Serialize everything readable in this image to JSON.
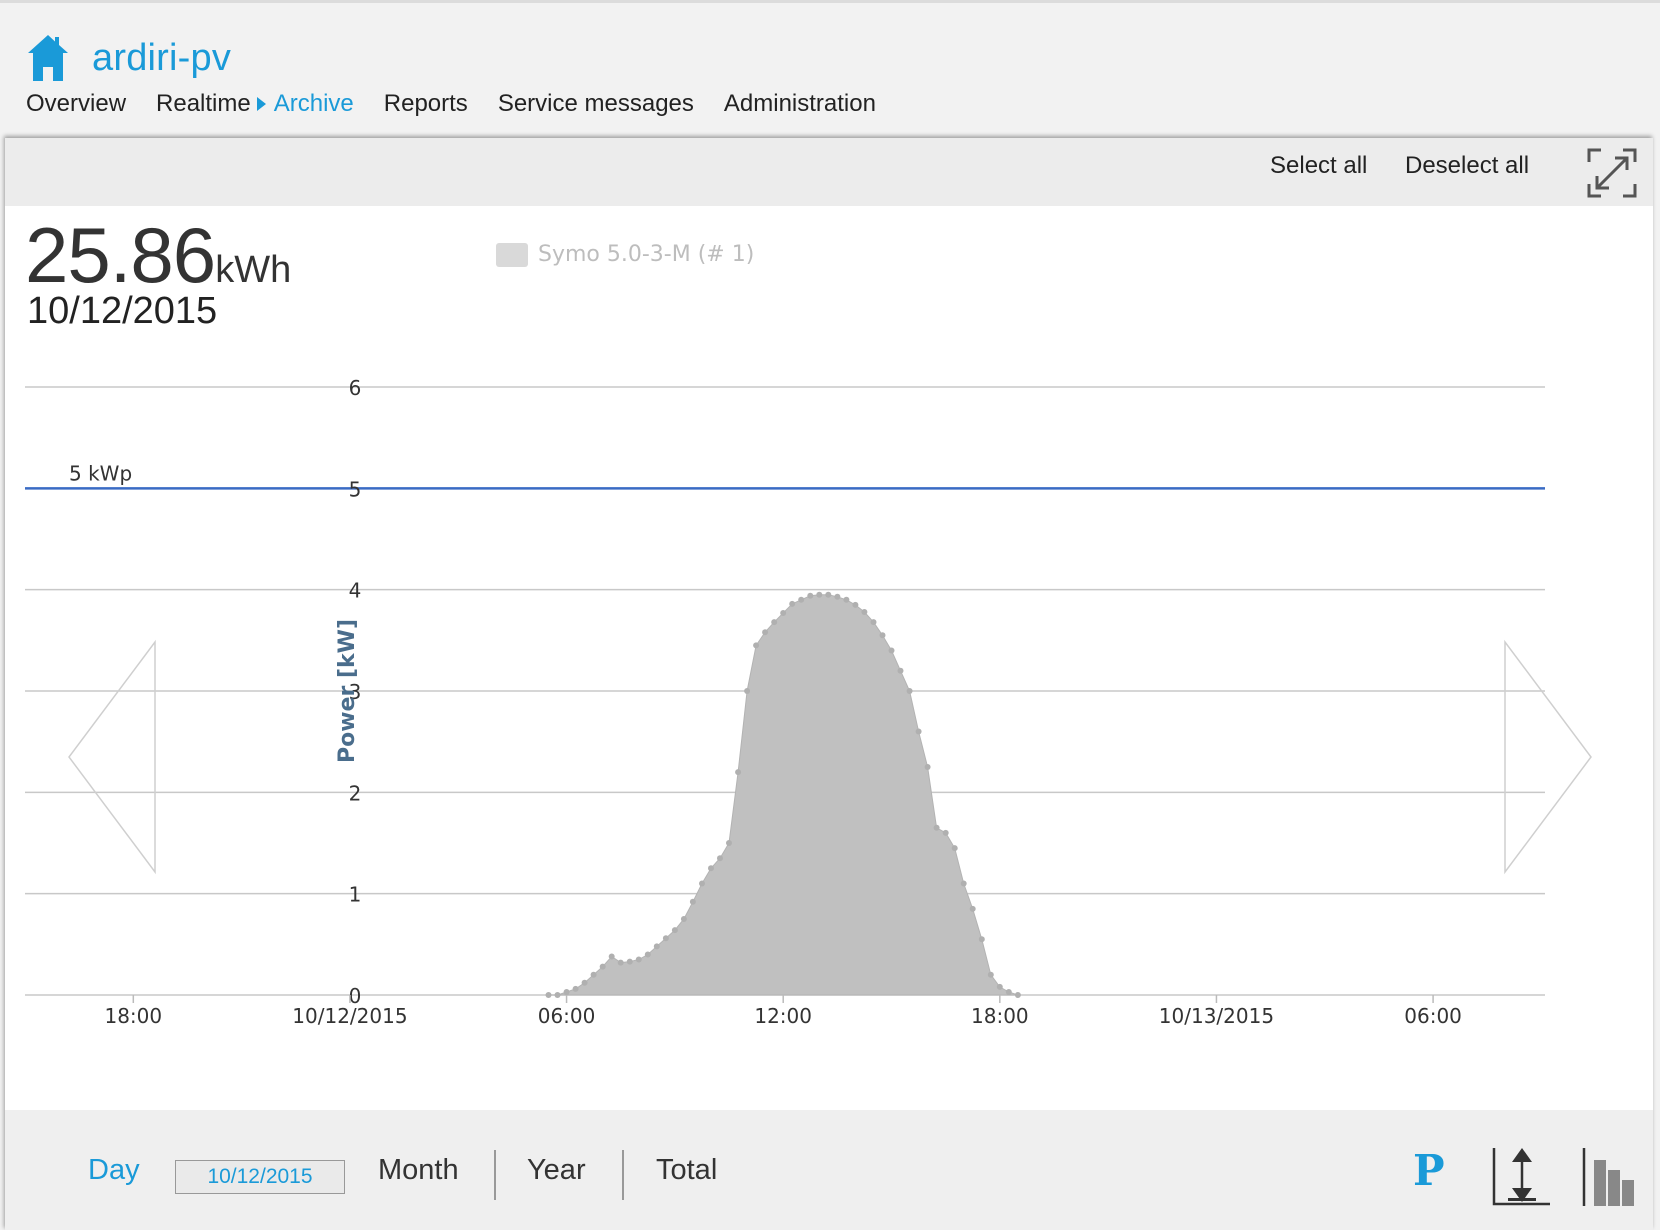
{
  "app": {
    "title": "ardiri-pv"
  },
  "nav": {
    "items": [
      "Overview",
      "Realtime",
      "Archive",
      "Reports",
      "Service messages",
      "Administration"
    ]
  },
  "toolbar": {
    "select_all": "Select all",
    "deselect_all": "Deselect all"
  },
  "summary": {
    "energy_value": "25.86",
    "energy_unit": "kWh",
    "date": "10/12/2015"
  },
  "legend": {
    "label": "Symo 5.0-3-M (# 1)",
    "color": "#d9d9d9"
  },
  "reference_line": {
    "label": "5 kWp",
    "value": 5,
    "color": "#3a6bc4"
  },
  "footer": {
    "day": "Day",
    "date_value": "10/12/2015",
    "month": "Month",
    "year": "Year",
    "total": "Total",
    "power_button": "P"
  },
  "colors": {
    "accent": "#1a9ad8",
    "series_fill": "#c0c0c0",
    "axis_title": "#4a6d8c"
  },
  "chart_data": {
    "type": "area",
    "ylabel": "Power [kW]",
    "ylim": [
      0,
      6
    ],
    "y_ticks": [
      0,
      1,
      2,
      3,
      4,
      5,
      6
    ],
    "x_ticks": [
      {
        "hour": 18,
        "label": "18:00"
      },
      {
        "hour": 24,
        "label": "10/12/2015"
      },
      {
        "hour": 30,
        "label": "06:00"
      },
      {
        "hour": 36,
        "label": "12:00"
      },
      {
        "hour": 42,
        "label": "18:00"
      },
      {
        "hour": 48,
        "label": "10/13/2015"
      },
      {
        "hour": 54,
        "label": "06:00"
      }
    ],
    "xlim_hours": [
      15,
      57.1
    ],
    "series": [
      {
        "name": "Symo 5.0-3-M (# 1)",
        "points": [
          [
            29.5,
            0
          ],
          [
            29.75,
            0
          ],
          [
            30,
            0.03
          ],
          [
            30.25,
            0.06
          ],
          [
            30.5,
            0.12
          ],
          [
            30.75,
            0.2
          ],
          [
            31,
            0.28
          ],
          [
            31.25,
            0.38
          ],
          [
            31.5,
            0.32
          ],
          [
            31.75,
            0.33
          ],
          [
            32,
            0.35
          ],
          [
            32.25,
            0.4
          ],
          [
            32.5,
            0.48
          ],
          [
            32.75,
            0.56
          ],
          [
            33,
            0.64
          ],
          [
            33.25,
            0.75
          ],
          [
            33.5,
            0.92
          ],
          [
            33.75,
            1.1
          ],
          [
            34,
            1.25
          ],
          [
            34.25,
            1.35
          ],
          [
            34.5,
            1.5
          ],
          [
            34.75,
            2.2
          ],
          [
            35,
            3.0
          ],
          [
            35.25,
            3.45
          ],
          [
            35.5,
            3.58
          ],
          [
            35.75,
            3.68
          ],
          [
            36,
            3.77
          ],
          [
            36.25,
            3.86
          ],
          [
            36.5,
            3.9
          ],
          [
            36.75,
            3.94
          ],
          [
            37,
            3.95
          ],
          [
            37.25,
            3.95
          ],
          [
            37.5,
            3.93
          ],
          [
            37.75,
            3.9
          ],
          [
            38,
            3.85
          ],
          [
            38.25,
            3.78
          ],
          [
            38.5,
            3.68
          ],
          [
            38.75,
            3.55
          ],
          [
            39,
            3.4
          ],
          [
            39.25,
            3.2
          ],
          [
            39.5,
            3.0
          ],
          [
            39.75,
            2.6
          ],
          [
            40,
            2.25
          ],
          [
            40.25,
            1.65
          ],
          [
            40.5,
            1.6
          ],
          [
            40.75,
            1.45
          ],
          [
            41,
            1.1
          ],
          [
            41.25,
            0.85
          ],
          [
            41.5,
            0.55
          ],
          [
            41.75,
            0.2
          ],
          [
            42,
            0.08
          ],
          [
            42.25,
            0.03
          ],
          [
            42.5,
            0
          ]
        ]
      }
    ]
  }
}
